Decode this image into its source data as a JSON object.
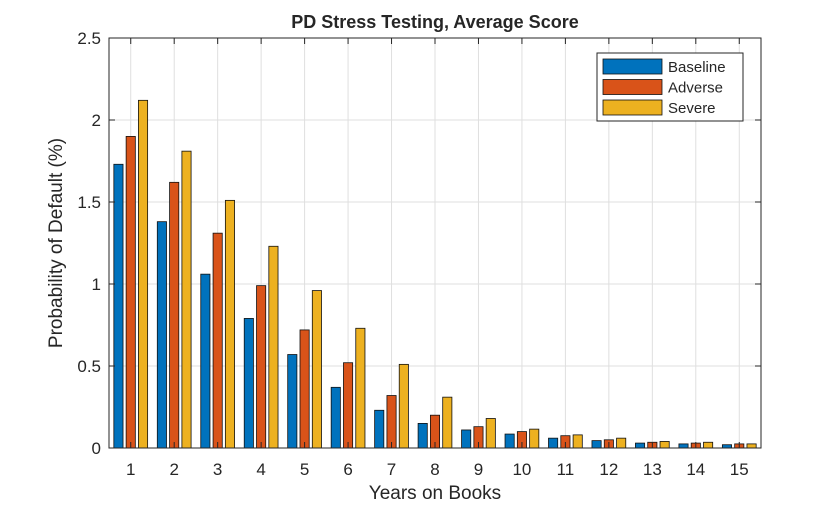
{
  "chart_data": {
    "type": "bar",
    "title": "PD Stress Testing, Average Score",
    "xlabel": "Years on Books",
    "ylabel": "Probability of Default (%)",
    "categories": [
      "1",
      "2",
      "3",
      "4",
      "5",
      "6",
      "7",
      "8",
      "9",
      "10",
      "11",
      "12",
      "13",
      "14",
      "15"
    ],
    "ylim": [
      0,
      2.5
    ],
    "yticks": [
      0,
      0.5,
      1,
      1.5,
      2,
      2.5
    ],
    "ytick_labels": [
      "0",
      "0.5",
      "1",
      "1.5",
      "2",
      "2.5"
    ],
    "grid": true,
    "legend_position": "top-right",
    "series": [
      {
        "name": "Baseline",
        "color": "#0072BD",
        "values": [
          1.73,
          1.38,
          1.06,
          0.79,
          0.57,
          0.37,
          0.23,
          0.15,
          0.11,
          0.085,
          0.06,
          0.045,
          0.03,
          0.025,
          0.02
        ]
      },
      {
        "name": "Adverse",
        "color": "#D95319",
        "values": [
          1.9,
          1.62,
          1.31,
          0.99,
          0.72,
          0.52,
          0.32,
          0.2,
          0.13,
          0.1,
          0.075,
          0.05,
          0.035,
          0.03,
          0.025
        ]
      },
      {
        "name": "Severe",
        "color": "#EDB120",
        "values": [
          2.12,
          1.81,
          1.51,
          1.23,
          0.96,
          0.73,
          0.51,
          0.31,
          0.18,
          0.115,
          0.08,
          0.06,
          0.04,
          0.035,
          0.025
        ]
      }
    ]
  }
}
